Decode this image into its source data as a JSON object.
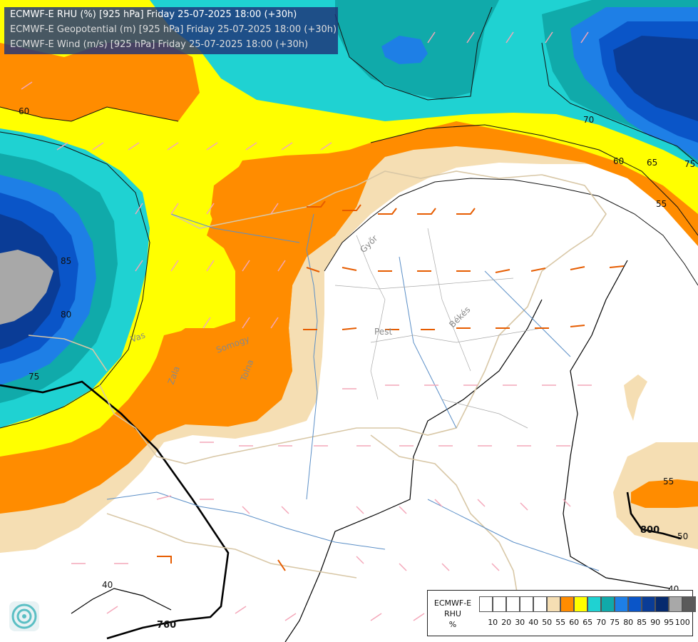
{
  "header": {
    "line1": "ECMWF-E RHU (%) [925 hPa] Friday 25-07-2025 18:00 (+30h)",
    "line2": "ECMWF-E Geopotential (m) [925 hPa] Friday 25-07-2025 18:00 (+30h)",
    "line3": "ECMWF-E Wind (m/s) [925 hPa] Friday 25-07-2025 18:00 (+30h)"
  },
  "legend": {
    "title_model": "ECMWF-E",
    "title_var": "RHU",
    "title_unit": "%",
    "colors": [
      "#ffffff",
      "#ffffff",
      "#ffffff",
      "#ffffff",
      "#ffffff",
      "#f5deb3",
      "#ff8c00",
      "#ffff00",
      "#1fd2d2",
      "#10aaaa",
      "#1e7fe6",
      "#0a55c8",
      "#0a3c96",
      "#062a6e",
      "#a8a8a8",
      "#5a5a5a"
    ],
    "ticks": [
      "10",
      "20",
      "30",
      "40",
      "50",
      "55",
      "60",
      "65",
      "70",
      "75",
      "80",
      "85",
      "90",
      "95",
      "100"
    ]
  },
  "contours": {
    "rhu_labels": [
      "60",
      "70",
      "60",
      "65",
      "75",
      "55",
      "85",
      "80",
      "75",
      "55",
      "50",
      "40",
      "40"
    ],
    "geopotential_labels": [
      "800",
      "760"
    ]
  },
  "places": [
    "Vas",
    "Zala",
    "Győr",
    "Somogy",
    "Tolna",
    "Pest",
    "Békés"
  ],
  "icons": {
    "logo": "logo-icon"
  }
}
